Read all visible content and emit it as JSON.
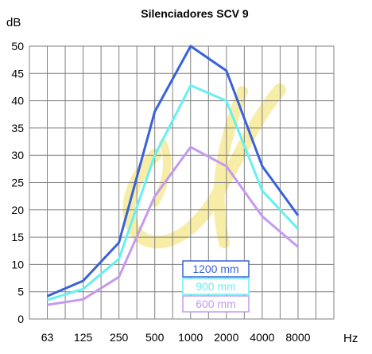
{
  "chart_data": {
    "type": "line",
    "title": "Silenciadores SCV 9",
    "ylabel": "dB",
    "xlabel": "Hz",
    "categories": [
      "63",
      "125",
      "250",
      "500",
      "1000",
      "2000",
      "4000",
      "8000"
    ],
    "yticks": [
      "0",
      "5",
      "10",
      "15",
      "20",
      "25",
      "30",
      "35",
      "40",
      "45",
      "50"
    ],
    "ylim": [
      0,
      50
    ],
    "grid": true,
    "legend_position": "bottom-center",
    "series": [
      {
        "name": "1200 mm",
        "color": "#3a62d8",
        "values": [
          4.2,
          7.0,
          14.0,
          38.0,
          50.0,
          45.5,
          28.0,
          19.0
        ]
      },
      {
        "name": "900 mm",
        "color": "#66f0f0",
        "values": [
          3.5,
          5.5,
          11.0,
          30.0,
          42.8,
          40.0,
          23.5,
          16.5
        ]
      },
      {
        "name": "600 mm",
        "color": "#c49af0",
        "values": [
          2.6,
          3.6,
          7.7,
          22.5,
          31.5,
          28.0,
          18.8,
          13.2
        ]
      }
    ],
    "watermark": {
      "icon": "yellow-flame-logo-icon",
      "color": "#f5e88a"
    }
  }
}
